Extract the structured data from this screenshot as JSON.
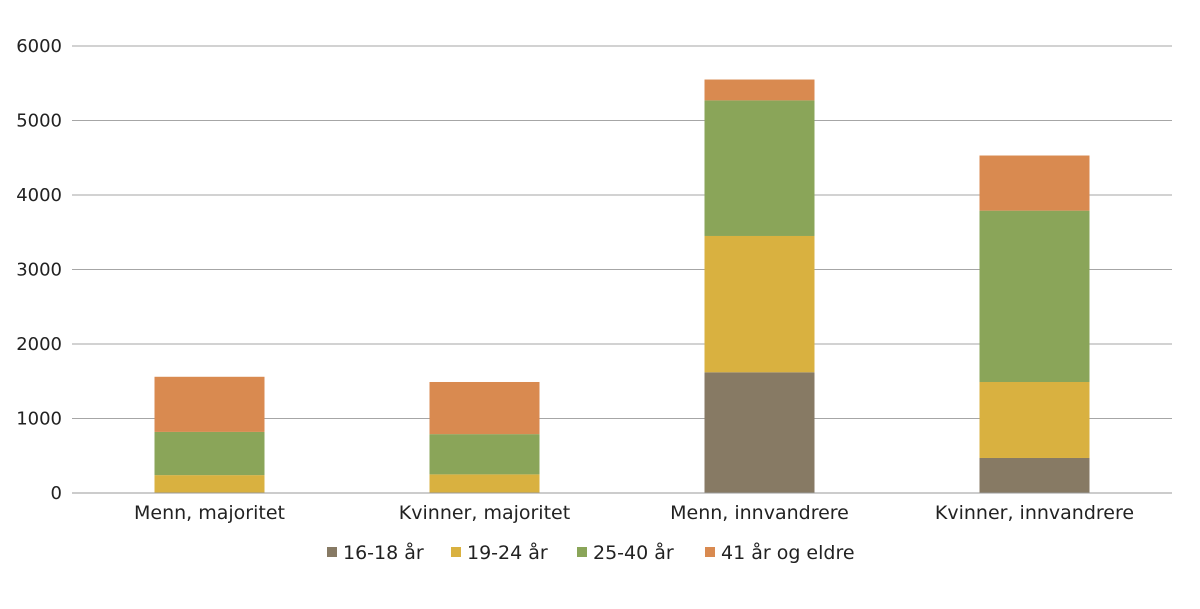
{
  "chart_data": {
    "type": "bar",
    "stacked": true,
    "categories": [
      "Menn, majoritet",
      "Kvinner, majoritet",
      "Menn, innvandrere",
      "Kvinner, innvandrere"
    ],
    "series": [
      {
        "name": "16-18 år",
        "color": "#877a64",
        "values": [
          0,
          0,
          1620,
          470
        ]
      },
      {
        "name": "19-24 år",
        "color": "#d9b140",
        "values": [
          240,
          250,
          1830,
          1020
        ]
      },
      {
        "name": "25-40 år",
        "color": "#8aa559",
        "values": [
          580,
          540,
          1820,
          2300
        ]
      },
      {
        "name": "41 år og eldre",
        "color": "#d98a50",
        "values": [
          740,
          700,
          280,
          740
        ]
      }
    ],
    "ylim": [
      0,
      6000
    ],
    "yticks": [
      0,
      1000,
      2000,
      3000,
      4000,
      5000,
      6000
    ],
    "grid": true,
    "legend": "bottom"
  }
}
